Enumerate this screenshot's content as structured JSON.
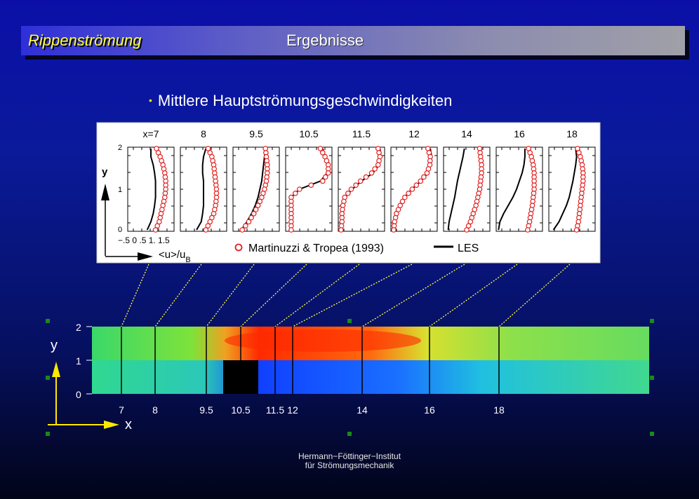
{
  "header": {
    "left": "Rippenströmung",
    "center": "Ergebnisse"
  },
  "bullet": "Mittlere Hauptströmungsgeschwindigkeiten",
  "profile_panel": {
    "stations": [
      "x=7",
      "8",
      "9.5",
      "10.5",
      "11.5",
      "12",
      "14",
      "16",
      "18"
    ],
    "y_axis_label": "y",
    "y_ticks": [
      "2",
      "1",
      "0"
    ],
    "x_ticks": "−.5 0  .5  1. 1.5",
    "x_axis_label": "<u>/u",
    "x_axis_label_sub": "B",
    "legend_experiment": "Martinuzzi & Tropea (1993)",
    "legend_les": "LES"
  },
  "domain_plot": {
    "y_label": "y",
    "x_label": "x",
    "y_ticks": [
      "2",
      "1",
      "0"
    ],
    "stations": [
      "7",
      "8",
      "9.5",
      "10.5",
      "11.5",
      "12",
      "14",
      "16",
      "18"
    ]
  },
  "footer": {
    "line1": "Hermann−Föttinger−Institut",
    "line2": "für Strömungsmechanik"
  },
  "colors": {
    "title_accent": "#ffff30",
    "experiment": "#e02020",
    "les": "#000000",
    "connector": "#ffff40"
  }
}
